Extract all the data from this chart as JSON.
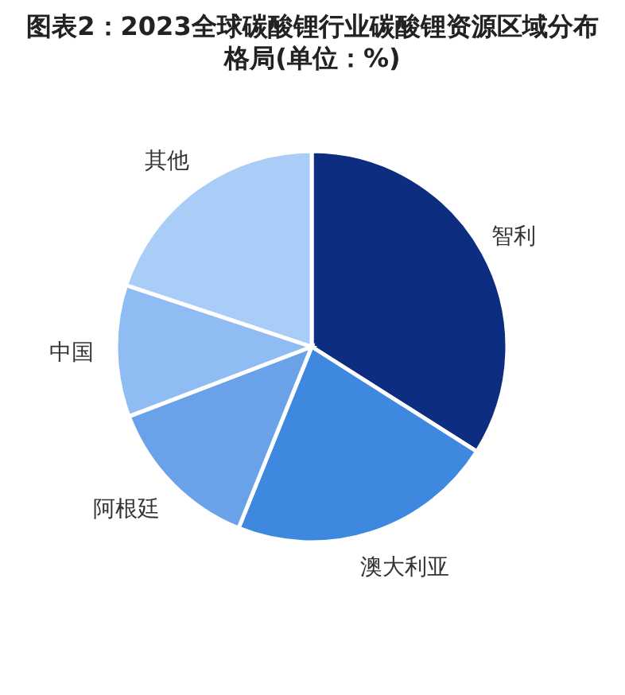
{
  "chart_data": {
    "type": "pie",
    "title": "图表2：2023全球碳酸锂行业碳酸锂资源区域分布格局(单位：%)",
    "categories": [
      "智利",
      "澳大利亚",
      "阿根廷",
      "中国",
      "其他"
    ],
    "values": [
      34.0,
      22.1,
      13.1,
      10.9,
      19.9
    ],
    "colors": [
      "#0c2d80",
      "#3f88e0",
      "#6aa2ea",
      "#8fbcf2",
      "#aacdf7"
    ]
  }
}
